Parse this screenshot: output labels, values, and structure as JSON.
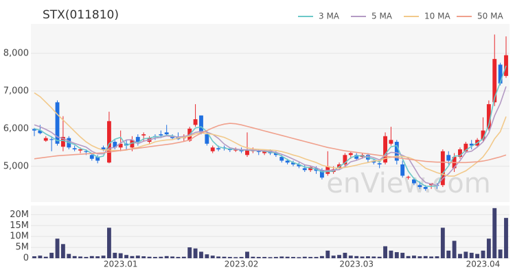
{
  "chart_data": {
    "type": "candlestick",
    "title": "STX(011810)",
    "watermark": "enView.com",
    "legend_position": "top-right",
    "up_color": "#e8262b",
    "down_color": "#1f6fe0",
    "categories": [
      null,
      null,
      null,
      null,
      null,
      null,
      null,
      null,
      null,
      null,
      null,
      null,
      null,
      null,
      null,
      "2023.01",
      null,
      null,
      null,
      null,
      null,
      null,
      null,
      null,
      null,
      null,
      null,
      null,
      null,
      null,
      null,
      null,
      null,
      null,
      null,
      null,
      "2023.02",
      null,
      null,
      null,
      null,
      null,
      null,
      null,
      null,
      null,
      null,
      null,
      null,
      null,
      null,
      null,
      null,
      null,
      null,
      null,
      "2023.03",
      null,
      null,
      null,
      null,
      null,
      null,
      null,
      null,
      null,
      null,
      null,
      null,
      null,
      null,
      null,
      null,
      null,
      null,
      null,
      null,
      null,
      "2023.04",
      null,
      null,
      null,
      null
    ],
    "open": [
      5990,
      5950,
      5680,
      5720,
      6700,
      5520,
      5750,
      5480,
      5420,
      5400,
      5300,
      5250,
      5500,
      5100,
      5650,
      5500,
      5600,
      5500,
      5780,
      5820,
      5650,
      5800,
      5850,
      5900,
      5800,
      5780,
      5750,
      5680,
      6100,
      6350,
      5850,
      5400,
      5480,
      5500,
      5450,
      5420,
      5450,
      5300,
      5420,
      5400,
      5350,
      5420,
      5350,
      5250,
      5150,
      5100,
      5050,
      4950,
      4900,
      4950,
      4900,
      4800,
      4850,
      4950,
      5050,
      5300,
      5300,
      5250,
      5300,
      5150,
      5080,
      5100,
      5600,
      5650,
      5050,
      4700,
      4650,
      4500,
      4450,
      4500,
      4500,
      4500,
      5300,
      4950,
      5250,
      5400,
      5600,
      5550,
      5700,
      6000,
      6700,
      7700,
      7400
    ],
    "high": [
      6020,
      6100,
      5800,
      5800,
      6750,
      6330,
      5800,
      5550,
      5500,
      5450,
      5350,
      5300,
      5550,
      6450,
      5700,
      5950,
      5700,
      5800,
      5850,
      5900,
      5800,
      5850,
      5950,
      6100,
      5850,
      5900,
      5850,
      6050,
      6650,
      6350,
      5900,
      5550,
      5550,
      5550,
      5500,
      5500,
      5500,
      5900,
      5500,
      5450,
      5450,
      5450,
      5400,
      5300,
      5200,
      5150,
      5100,
      5050,
      5000,
      5000,
      4950,
      5400,
      5000,
      5100,
      5350,
      5400,
      5350,
      5350,
      5350,
      5200,
      5150,
      5900,
      6050,
      5700,
      5150,
      4750,
      4700,
      4600,
      4500,
      4550,
      4550,
      5450,
      5400,
      5350,
      5500,
      5650,
      5700,
      5750,
      6300,
      6750,
      8500,
      7750,
      8450
    ],
    "low": [
      5800,
      5850,
      5650,
      5400,
      5550,
      5400,
      5450,
      5400,
      5350,
      5300,
      5150,
      5080,
      5400,
      5080,
      5450,
      5400,
      5450,
      5400,
      5550,
      5650,
      5600,
      5700,
      5750,
      5800,
      5700,
      5700,
      5650,
      5650,
      6050,
      5850,
      5550,
      5350,
      5400,
      5420,
      5380,
      5380,
      5350,
      5250,
      5350,
      5300,
      5300,
      5300,
      5250,
      5100,
      5050,
      5000,
      4950,
      4850,
      4850,
      4800,
      4650,
      4750,
      4800,
      4900,
      5000,
      5200,
      5150,
      5200,
      5100,
      5050,
      4950,
      5050,
      5550,
      5050,
      4700,
      4650,
      4500,
      4400,
      4350,
      4400,
      4400,
      4450,
      5050,
      4850,
      5200,
      5350,
      5450,
      5500,
      5650,
      5950,
      6600,
      7150,
      7350
    ],
    "close": [
      5950,
      5880,
      5750,
      5700,
      5600,
      5780,
      5500,
      5450,
      5450,
      5380,
      5200,
      5150,
      5450,
      6200,
      5500,
      5600,
      5550,
      5700,
      5650,
      5850,
      5750,
      5780,
      5820,
      5850,
      5750,
      5720,
      5800,
      6000,
      6250,
      5900,
      5600,
      5500,
      5450,
      5480,
      5440,
      5440,
      5400,
      5450,
      5420,
      5380,
      5400,
      5350,
      5300,
      5150,
      5100,
      5050,
      5000,
      4900,
      4980,
      4880,
      4700,
      5000,
      4920,
      5050,
      5300,
      5350,
      5200,
      5300,
      5180,
      5100,
      5050,
      5800,
      5700,
      5150,
      4750,
      4720,
      4550,
      4450,
      4400,
      4550,
      4480,
      5400,
      5150,
      5250,
      5450,
      5600,
      5550,
      5700,
      5950,
      6650,
      7850,
      7200,
      7950
    ],
    "ylim": [
      4050,
      8780
    ],
    "yticks": [
      {
        "value": 5000,
        "label": "5,000"
      },
      {
        "value": 6000,
        "label": "6,000"
      },
      {
        "value": 7000,
        "label": "7,000"
      },
      {
        "value": 8000,
        "label": "8,000"
      }
    ],
    "grid": true,
    "moving_averages": [
      {
        "name": "3 MA",
        "color": "#6cc8c8",
        "values": [
          6000,
          5960,
          5860,
          5780,
          5680,
          5690,
          5630,
          5580,
          5470,
          5430,
          5340,
          5240,
          5270,
          5600,
          5720,
          5770,
          5550,
          5620,
          5630,
          5730,
          5750,
          5790,
          5780,
          5820,
          5810,
          5770,
          5760,
          5840,
          6020,
          6050,
          5920,
          5670,
          5520,
          5480,
          5460,
          5450,
          5430,
          5430,
          5420,
          5420,
          5400,
          5380,
          5350,
          5270,
          5180,
          5100,
          5050,
          4980,
          4960,
          4920,
          4850,
          4860,
          4870,
          4990,
          5090,
          5230,
          5280,
          5280,
          5230,
          5190,
          5110,
          5320,
          5520,
          5550,
          5200,
          4870,
          4670,
          4570,
          4470,
          4470,
          4480,
          4810,
          5010,
          5270,
          5280,
          5430,
          5530,
          5620,
          5730,
          6100,
          6820,
          7230,
          7670
        ]
      },
      {
        "name": "5 MA",
        "color": "#b49ac4",
        "values": [
          6100,
          6050,
          5980,
          5900,
          5780,
          5740,
          5670,
          5610,
          5560,
          5510,
          5400,
          5330,
          5330,
          5480,
          5500,
          5620,
          5700,
          5710,
          5600,
          5670,
          5700,
          5750,
          5770,
          5810,
          5790,
          5780,
          5790,
          5830,
          5900,
          5930,
          5910,
          5850,
          5740,
          5590,
          5490,
          5460,
          5440,
          5440,
          5430,
          5420,
          5410,
          5400,
          5370,
          5320,
          5260,
          5190,
          5120,
          5040,
          5010,
          4960,
          4890,
          4890,
          4900,
          4910,
          4990,
          5120,
          5160,
          5220,
          5270,
          5230,
          5170,
          5290,
          5370,
          5360,
          5290,
          5220,
          4970,
          4720,
          4570,
          4530,
          4490,
          4680,
          4800,
          4970,
          5150,
          5370,
          5400,
          5510,
          5650,
          5890,
          6340,
          6670,
          7120
        ]
      },
      {
        "name": "10 MA",
        "color": "#f2c98a",
        "values": [
          6950,
          6850,
          6700,
          6550,
          6380,
          6230,
          6080,
          5930,
          5780,
          5650,
          5550,
          5480,
          5430,
          5430,
          5420,
          5420,
          5430,
          5470,
          5500,
          5550,
          5590,
          5650,
          5680,
          5700,
          5710,
          5750,
          5770,
          5800,
          5860,
          5890,
          5870,
          5850,
          5810,
          5770,
          5700,
          5620,
          5540,
          5490,
          5460,
          5450,
          5440,
          5430,
          5420,
          5390,
          5350,
          5300,
          5260,
          5200,
          5150,
          5100,
          5030,
          4990,
          4960,
          4950,
          4970,
          5000,
          5030,
          5070,
          5100,
          5140,
          5150,
          5210,
          5240,
          5270,
          5260,
          5240,
          5180,
          5070,
          4950,
          4890,
          4830,
          4790,
          4740,
          4740,
          4810,
          4880,
          4990,
          5110,
          5250,
          5460,
          5730,
          5920,
          6320
        ]
      },
      {
        "name": "50 MA",
        "color": "#f0a08c",
        "values": [
          5200,
          5220,
          5240,
          5260,
          5280,
          5290,
          5300,
          5310,
          5320,
          5330,
          5340,
          5350,
          5360,
          5380,
          5400,
          5420,
          5440,
          5460,
          5480,
          5500,
          5520,
          5540,
          5560,
          5580,
          5600,
          5630,
          5660,
          5700,
          5800,
          5880,
          5950,
          6020,
          6080,
          6120,
          6140,
          6130,
          6100,
          6060,
          6020,
          5980,
          5940,
          5900,
          5860,
          5820,
          5780,
          5740,
          5700,
          5660,
          5620,
          5580,
          5540,
          5500,
          5470,
          5440,
          5410,
          5390,
          5370,
          5350,
          5330,
          5310,
          5290,
          5270,
          5250,
          5230,
          5210,
          5190,
          5170,
          5150,
          5130,
          5120,
          5110,
          5110,
          5100,
          5100,
          5100,
          5100,
          5110,
          5120,
          5140,
          5170,
          5210,
          5250,
          5300
        ]
      }
    ],
    "volume": {
      "color": "#3f4170",
      "values": [
        0.9,
        1.2,
        0.7,
        2.5,
        9.0,
        6.5,
        2.0,
        1.0,
        0.8,
        0.6,
        1.0,
        0.9,
        1.2,
        14.0,
        2.5,
        2.3,
        1.5,
        1.0,
        1.2,
        0.9,
        0.7,
        0.6,
        0.7,
        1.0,
        0.8,
        0.6,
        0.7,
        5.0,
        4.5,
        3.0,
        1.8,
        1.2,
        0.8,
        0.7,
        0.6,
        0.5,
        0.6,
        3.0,
        0.7,
        0.6,
        0.6,
        0.5,
        0.6,
        0.8,
        0.7,
        0.6,
        0.5,
        0.7,
        0.6,
        0.6,
        1.0,
        3.5,
        1.2,
        1.5,
        2.5,
        1.2,
        1.0,
        0.8,
        0.9,
        0.8,
        0.7,
        5.5,
        3.5,
        2.8,
        2.5,
        1.0,
        1.2,
        0.9,
        1.0,
        0.8,
        0.9,
        14.0,
        3.5,
        8.0,
        2.0,
        3.0,
        2.5,
        2.0,
        3.5,
        9.0,
        23.0,
        4.0,
        18.5
      ],
      "ylim": [
        0,
        24.2
      ],
      "yticks": [
        0,
        {
          "value": 5,
          "label": "5M"
        },
        {
          "value": 10,
          "label": "10M"
        },
        {
          "value": 15,
          "label": "15M"
        },
        {
          "value": 20,
          "label": "20M"
        }
      ]
    }
  }
}
